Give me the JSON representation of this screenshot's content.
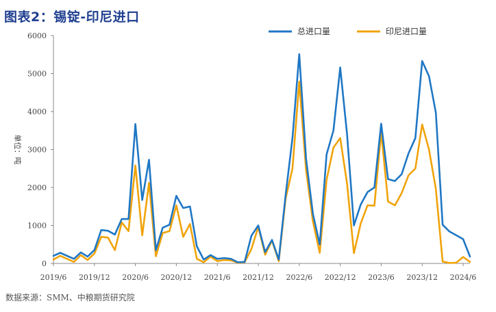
{
  "title": "图表2：锡锭-印尼进口",
  "source": "数据来源：SMM、中粮期货研究院",
  "chart_data": {
    "type": "line",
    "ylabel": "单位：吨",
    "ylim": [
      0,
      6000
    ],
    "yticks": [
      0,
      1000,
      2000,
      3000,
      4000,
      5000,
      6000
    ],
    "x_tick_labels": [
      "2019/6",
      "2019/12",
      "2020/6",
      "2020/12",
      "2021/6",
      "2021/12",
      "2022/6",
      "2022/12",
      "2023/6",
      "2023/12",
      "2024/6"
    ],
    "x": [
      "2019/6",
      "2019/7",
      "2019/8",
      "2019/9",
      "2019/10",
      "2019/11",
      "2019/12",
      "2020/1",
      "2020/2",
      "2020/3",
      "2020/4",
      "2020/5",
      "2020/6",
      "2020/7",
      "2020/8",
      "2020/9",
      "2020/10",
      "2020/11",
      "2020/12",
      "2021/1",
      "2021/2",
      "2021/3",
      "2021/4",
      "2021/5",
      "2021/6",
      "2021/7",
      "2021/8",
      "2021/9",
      "2021/10",
      "2021/11",
      "2021/12",
      "2022/1",
      "2022/2",
      "2022/3",
      "2022/4",
      "2022/5",
      "2022/6",
      "2022/7",
      "2022/8",
      "2022/9",
      "2022/10",
      "2022/11",
      "2022/12",
      "2023/1",
      "2023/2",
      "2023/3",
      "2023/4",
      "2023/5",
      "2023/6",
      "2023/7",
      "2023/8",
      "2023/9",
      "2023/10",
      "2023/11",
      "2023/12",
      "2024/1",
      "2024/2",
      "2024/3",
      "2024/4",
      "2024/5",
      "2024/6",
      "2024/7"
    ],
    "series": [
      {
        "name": "总进口量",
        "color": "#1f77c4",
        "values": [
          200,
          280,
          200,
          120,
          290,
          180,
          350,
          880,
          860,
          760,
          1170,
          1170,
          3670,
          1670,
          2730,
          350,
          940,
          1020,
          1780,
          1460,
          1500,
          450,
          100,
          220,
          120,
          140,
          120,
          30,
          40,
          730,
          1000,
          300,
          620,
          100,
          1800,
          3300,
          5510,
          2750,
          1300,
          500,
          2870,
          3500,
          5160,
          3400,
          1000,
          1550,
          1880,
          2000,
          3680,
          2220,
          2170,
          2350,
          2900,
          3300,
          5330,
          4930,
          3970,
          1020,
          840,
          740,
          640,
          180
        ]
      },
      {
        "name": "印尼进口量",
        "color": "#f0a30a",
        "values": [
          100,
          200,
          120,
          40,
          220,
          90,
          260,
          700,
          680,
          350,
          1080,
          850,
          2580,
          740,
          2120,
          190,
          800,
          850,
          1530,
          700,
          1040,
          120,
          30,
          180,
          60,
          90,
          80,
          20,
          30,
          380,
          960,
          230,
          600,
          60,
          1700,
          2500,
          4790,
          2450,
          1100,
          280,
          2200,
          3050,
          3300,
          2100,
          270,
          1050,
          1530,
          1520,
          3460,
          1630,
          1530,
          1850,
          2320,
          2500,
          3660,
          3000,
          1960,
          50,
          10,
          20,
          170,
          40
        ]
      }
    ]
  }
}
